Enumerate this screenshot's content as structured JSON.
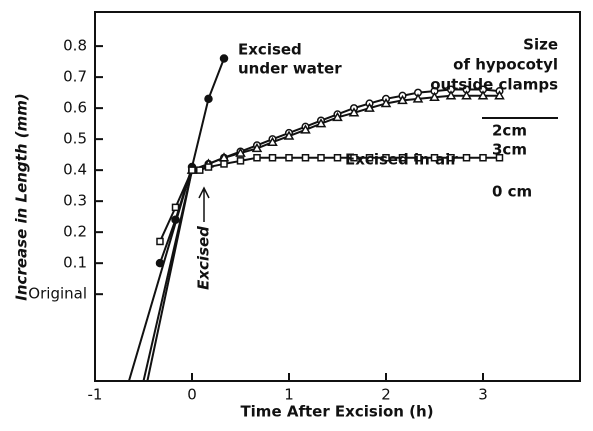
{
  "chart_data": {
    "type": "line",
    "xlabel": "Time After Excision (h)",
    "ylabel": "Increase in Length (mm)",
    "xlim": [
      -1,
      4
    ],
    "ylim": [
      -0.28,
      0.91
    ],
    "xticks": [
      -1,
      0,
      1,
      2,
      3
    ],
    "yticks": [
      {
        "value": 0,
        "label": "Original"
      },
      0.1,
      0.2,
      0.3,
      0.4,
      0.5,
      0.6,
      0.7,
      0.8
    ],
    "legend_title": [
      "Size",
      "of hypocotyl",
      "outside clamps"
    ],
    "annotations": [
      "Excised",
      "under water",
      "Excised in air",
      "Excised"
    ],
    "series": [
      {
        "name": "Excised under water",
        "marker": "circle-filled",
        "color": "#111",
        "x": [
          -0.33,
          -0.17,
          0,
          0.17,
          0.33
        ],
        "values": [
          0.1,
          0.24,
          0.41,
          0.63,
          0.76
        ]
      },
      {
        "name": "2cm",
        "marker": "circle-open",
        "color": "#111",
        "x": [
          0,
          0.17,
          0.33,
          0.5,
          0.67,
          0.83,
          1,
          1.17,
          1.33,
          1.5,
          1.67,
          1.83,
          2,
          2.17,
          2.33,
          2.5,
          2.67,
          2.83,
          3,
          3.17
        ],
        "values": [
          0.4,
          0.42,
          0.44,
          0.46,
          0.48,
          0.5,
          0.52,
          0.54,
          0.56,
          0.58,
          0.6,
          0.615,
          0.63,
          0.64,
          0.65,
          0.655,
          0.66,
          0.66,
          0.66,
          0.655
        ]
      },
      {
        "name": "3cm",
        "marker": "triangle",
        "color": "#111",
        "x": [
          0,
          0.17,
          0.33,
          0.5,
          0.67,
          0.83,
          1,
          1.17,
          1.33,
          1.5,
          1.67,
          1.83,
          2,
          2.17,
          2.33,
          2.5,
          2.67,
          2.83,
          3,
          3.17
        ],
        "values": [
          0.4,
          0.42,
          0.44,
          0.455,
          0.47,
          0.49,
          0.51,
          0.53,
          0.55,
          0.57,
          0.585,
          0.6,
          0.615,
          0.625,
          0.63,
          0.635,
          0.64,
          0.64,
          0.64,
          0.64
        ]
      },
      {
        "name": "0 cm",
        "marker": "square",
        "color": "#111",
        "x": [
          -0.33,
          -0.17,
          0,
          0.08,
          0.17,
          0.33,
          0.5,
          0.67,
          0.83,
          1,
          1.17,
          1.33,
          1.5,
          1.67,
          1.83,
          2,
          2.17,
          2.33,
          2.5,
          2.67,
          2.83,
          3,
          3.17
        ],
        "values": [
          0.17,
          0.28,
          0.4,
          0.4,
          0.41,
          0.42,
          0.43,
          0.44,
          0.44,
          0.44,
          0.44,
          0.44,
          0.44,
          0.44,
          0.44,
          0.44,
          0.44,
          0.44,
          0.44,
          0.44,
          0.44,
          0.44,
          0.44
        ]
      }
    ],
    "fits": [
      {
        "x": [
          -0.65,
          0
        ],
        "values": [
          -0.28,
          0.41
        ]
      },
      {
        "x": [
          -0.5,
          0
        ],
        "values": [
          -0.28,
          0.4
        ]
      },
      {
        "x": [
          -0.46,
          0
        ],
        "values": [
          -0.28,
          0.4
        ]
      }
    ]
  }
}
